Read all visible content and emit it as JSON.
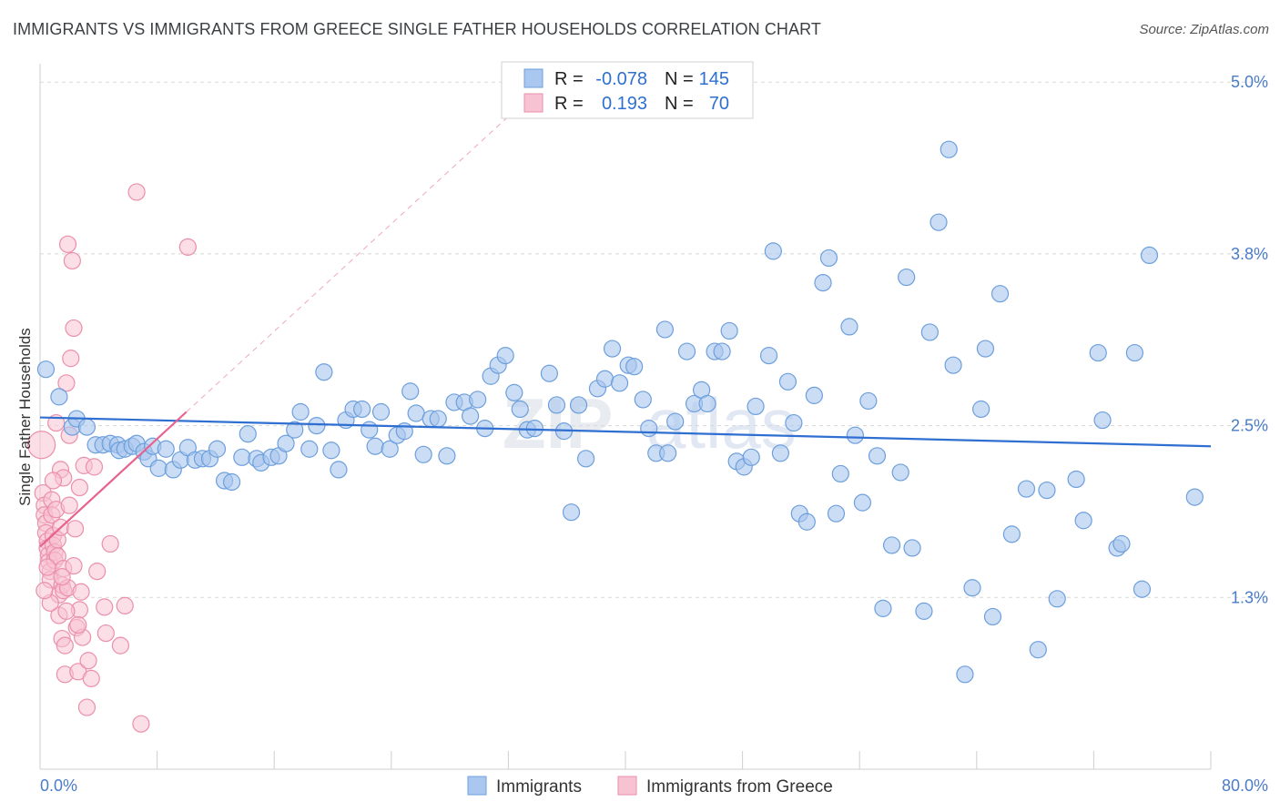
{
  "header": {
    "title": "IMMIGRANTS VS IMMIGRANTS FROM GREECE SINGLE FATHER HOUSEHOLDS CORRELATION CHART",
    "source": "Source: ZipAtlas.com"
  },
  "watermark": {
    "zip": "ZIP",
    "atlas": "atlas"
  },
  "legend": {
    "r_label": "R =",
    "n_label": "N =",
    "rows": [
      {
        "r": "-0.078",
        "n": "145"
      },
      {
        "r": "0.193",
        "n": "70"
      }
    ]
  },
  "colors": {
    "blue_fill": "#a9c7ef",
    "blue_stroke": "#6d9fdc",
    "blue_line": "#2f6fd1",
    "pink_fill": "#f7c3d2",
    "pink_stroke": "#eb8fac",
    "pink_line": "#e8628f",
    "grid": "#d8d8d8",
    "axis_label": "#4a7cc7"
  },
  "chart_data": {
    "type": "scatter",
    "title": "IMMIGRANTS VS IMMIGRANTS FROM GREECE SINGLE FATHER HOUSEHOLDS CORRELATION CHART",
    "xlabel": "",
    "ylabel": "Single Father Households",
    "x_tick_labels": [
      "0.0%",
      "80.0%"
    ],
    "y_tick_labels": [
      "1.3%",
      "2.5%",
      "3.8%",
      "5.0%"
    ],
    "y_ticks": [
      1.25,
      2.5,
      3.75,
      5.0
    ],
    "xlim": [
      0,
      80
    ],
    "ylim": [
      0,
      5.2
    ],
    "grid": true,
    "legend_position": "top-center",
    "series": [
      {
        "name": "Immigrants",
        "color": "#a9c7ef",
        "trend": {
          "x": [
            0,
            80
          ],
          "y": [
            2.56,
            2.35
          ]
        },
        "points": [
          [
            0.4,
            2.91
          ],
          [
            1.3,
            2.71
          ],
          [
            2.2,
            2.49
          ],
          [
            2.5,
            2.55
          ],
          [
            3.2,
            2.49
          ],
          [
            3.8,
            2.36
          ],
          [
            4.3,
            2.36
          ],
          [
            4.8,
            2.37
          ],
          [
            5.3,
            2.36
          ],
          [
            5.4,
            2.32
          ],
          [
            5.8,
            2.33
          ],
          [
            6.3,
            2.35
          ],
          [
            6.6,
            2.37
          ],
          [
            7.1,
            2.31
          ],
          [
            7.4,
            2.26
          ],
          [
            7.7,
            2.35
          ],
          [
            8.1,
            2.19
          ],
          [
            8.6,
            2.33
          ],
          [
            9.1,
            2.18
          ],
          [
            9.6,
            2.25
          ],
          [
            10.1,
            2.34
          ],
          [
            10.6,
            2.25
          ],
          [
            11.1,
            2.26
          ],
          [
            11.6,
            2.26
          ],
          [
            12.1,
            2.33
          ],
          [
            12.6,
            2.1
          ],
          [
            13.1,
            2.09
          ],
          [
            13.8,
            2.27
          ],
          [
            14.2,
            2.44
          ],
          [
            14.8,
            2.26
          ],
          [
            15.1,
            2.23
          ],
          [
            15.8,
            2.27
          ],
          [
            16.3,
            2.28
          ],
          [
            16.8,
            2.37
          ],
          [
            17.4,
            2.47
          ],
          [
            17.8,
            2.6
          ],
          [
            18.4,
            2.33
          ],
          [
            18.9,
            2.5
          ],
          [
            19.4,
            2.89
          ],
          [
            19.9,
            2.32
          ],
          [
            20.4,
            2.18
          ],
          [
            20.9,
            2.54
          ],
          [
            21.4,
            2.62
          ],
          [
            22.0,
            2.62
          ],
          [
            22.5,
            2.47
          ],
          [
            22.9,
            2.35
          ],
          [
            23.3,
            2.6
          ],
          [
            23.9,
            2.33
          ],
          [
            24.4,
            2.43
          ],
          [
            24.9,
            2.46
          ],
          [
            25.3,
            2.75
          ],
          [
            25.7,
            2.59
          ],
          [
            26.2,
            2.29
          ],
          [
            26.7,
            2.55
          ],
          [
            27.2,
            2.55
          ],
          [
            27.8,
            2.28
          ],
          [
            28.3,
            2.67
          ],
          [
            29.0,
            2.67
          ],
          [
            29.4,
            2.57
          ],
          [
            29.9,
            2.69
          ],
          [
            30.4,
            2.48
          ],
          [
            30.8,
            2.86
          ],
          [
            31.3,
            2.94
          ],
          [
            31.8,
            3.01
          ],
          [
            32.4,
            2.74
          ],
          [
            32.8,
            2.62
          ],
          [
            33.3,
            2.47
          ],
          [
            33.8,
            2.48
          ],
          [
            34.8,
            2.88
          ],
          [
            35.3,
            2.65
          ],
          [
            35.8,
            2.46
          ],
          [
            36.3,
            1.87
          ],
          [
            36.8,
            2.65
          ],
          [
            37.3,
            2.26
          ],
          [
            38.1,
            2.77
          ],
          [
            38.6,
            2.84
          ],
          [
            39.1,
            3.06
          ],
          [
            39.6,
            2.81
          ],
          [
            40.2,
            2.94
          ],
          [
            40.6,
            2.93
          ],
          [
            41.2,
            2.69
          ],
          [
            41.6,
            2.48
          ],
          [
            42.1,
            2.3
          ],
          [
            42.7,
            3.2
          ],
          [
            42.9,
            2.3
          ],
          [
            43.4,
            2.53
          ],
          [
            44.2,
            3.04
          ],
          [
            44.7,
            2.66
          ],
          [
            45.2,
            2.76
          ],
          [
            45.6,
            2.66
          ],
          [
            46.1,
            3.04
          ],
          [
            46.6,
            3.04
          ],
          [
            47.1,
            3.19
          ],
          [
            47.6,
            2.24
          ],
          [
            48.1,
            2.2
          ],
          [
            48.6,
            2.27
          ],
          [
            48.9,
            2.64
          ],
          [
            49.8,
            3.01
          ],
          [
            50.1,
            3.77
          ],
          [
            50.6,
            2.3
          ],
          [
            51.1,
            2.82
          ],
          [
            51.5,
            2.52
          ],
          [
            51.9,
            1.86
          ],
          [
            52.4,
            1.8
          ],
          [
            52.9,
            2.72
          ],
          [
            53.5,
            3.54
          ],
          [
            53.9,
            3.72
          ],
          [
            54.4,
            1.86
          ],
          [
            54.7,
            2.15
          ],
          [
            55.3,
            3.22
          ],
          [
            55.7,
            2.43
          ],
          [
            56.2,
            1.94
          ],
          [
            56.6,
            2.68
          ],
          [
            57.2,
            2.28
          ],
          [
            57.6,
            1.17
          ],
          [
            58.2,
            1.63
          ],
          [
            58.8,
            2.16
          ],
          [
            59.2,
            3.58
          ],
          [
            59.6,
            1.61
          ],
          [
            60.4,
            1.15
          ],
          [
            60.8,
            3.18
          ],
          [
            61.4,
            3.98
          ],
          [
            62.1,
            4.51
          ],
          [
            62.4,
            2.94
          ],
          [
            63.2,
            0.69
          ],
          [
            63.7,
            1.32
          ],
          [
            64.3,
            2.62
          ],
          [
            64.6,
            3.06
          ],
          [
            65.1,
            1.11
          ],
          [
            65.6,
            3.46
          ],
          [
            66.4,
            1.71
          ],
          [
            67.4,
            2.04
          ],
          [
            68.2,
            0.87
          ],
          [
            68.8,
            2.03
          ],
          [
            69.5,
            1.24
          ],
          [
            70.8,
            2.11
          ],
          [
            71.3,
            1.81
          ],
          [
            72.3,
            3.03
          ],
          [
            72.6,
            2.54
          ],
          [
            73.6,
            1.61
          ],
          [
            73.9,
            1.64
          ],
          [
            74.8,
            3.03
          ],
          [
            75.3,
            1.31
          ],
          [
            75.8,
            3.74
          ],
          [
            78.9,
            1.98
          ]
        ]
      },
      {
        "name": "Immigrants from Greece",
        "color": "#f7c3d2",
        "trend": {
          "x": [
            0,
            10
          ],
          "y": [
            1.62,
            2.6
          ],
          "extended_to": [
            32,
            4.75
          ]
        },
        "points": [
          [
            0.1,
            2.36
          ],
          [
            0.2,
            2.01
          ],
          [
            0.3,
            1.92
          ],
          [
            0.3,
            1.85
          ],
          [
            0.4,
            1.79
          ],
          [
            0.4,
            1.72
          ],
          [
            0.5,
            1.66
          ],
          [
            0.5,
            1.61
          ],
          [
            0.6,
            1.56
          ],
          [
            0.6,
            1.51
          ],
          [
            0.7,
            1.44
          ],
          [
            0.7,
            1.38
          ],
          [
            0.8,
            1.96
          ],
          [
            0.8,
            1.85
          ],
          [
            0.9,
            1.7
          ],
          [
            0.9,
            1.63
          ],
          [
            1.0,
            1.58
          ],
          [
            1.0,
            1.52
          ],
          [
            1.1,
            2.52
          ],
          [
            1.1,
            1.89
          ],
          [
            1.2,
            1.67
          ],
          [
            1.2,
            1.55
          ],
          [
            1.3,
            1.27
          ],
          [
            1.3,
            1.12
          ],
          [
            1.4,
            2.18
          ],
          [
            1.4,
            1.76
          ],
          [
            1.5,
            1.34
          ],
          [
            1.5,
            0.95
          ],
          [
            1.6,
            1.46
          ],
          [
            1.6,
            1.3
          ],
          [
            1.7,
            0.9
          ],
          [
            1.7,
            0.69
          ],
          [
            1.8,
            2.81
          ],
          [
            1.9,
            1.32
          ],
          [
            2.0,
            2.43
          ],
          [
            2.0,
            1.92
          ],
          [
            2.1,
            2.99
          ],
          [
            2.2,
            3.7
          ],
          [
            2.3,
            3.21
          ],
          [
            2.3,
            1.48
          ],
          [
            2.5,
            1.03
          ],
          [
            2.6,
            0.71
          ],
          [
            2.7,
            1.16
          ],
          [
            2.8,
            1.29
          ],
          [
            2.9,
            0.96
          ],
          [
            3.0,
            2.21
          ],
          [
            3.3,
            0.79
          ],
          [
            3.5,
            0.66
          ],
          [
            3.7,
            2.2
          ],
          [
            4.4,
            1.18
          ],
          [
            4.5,
            0.99
          ],
          [
            4.8,
            1.64
          ],
          [
            5.5,
            0.9
          ],
          [
            5.8,
            1.19
          ],
          [
            6.6,
            4.2
          ],
          [
            6.9,
            0.33
          ],
          [
            10.1,
            3.8
          ],
          [
            3.2,
            0.45
          ],
          [
            1.9,
            3.82
          ],
          [
            1.6,
            2.12
          ],
          [
            2.6,
            1.05
          ],
          [
            0.9,
            2.1
          ],
          [
            1.8,
            1.15
          ],
          [
            0.5,
            1.47
          ],
          [
            1.5,
            1.4
          ],
          [
            2.4,
            1.75
          ],
          [
            0.7,
            1.21
          ],
          [
            3.9,
            1.44
          ],
          [
            2.7,
            2.05
          ],
          [
            0.3,
            1.3
          ]
        ]
      }
    ]
  },
  "bottom_legend": {
    "items": [
      "Immigrants",
      "Immigrants from Greece"
    ]
  }
}
